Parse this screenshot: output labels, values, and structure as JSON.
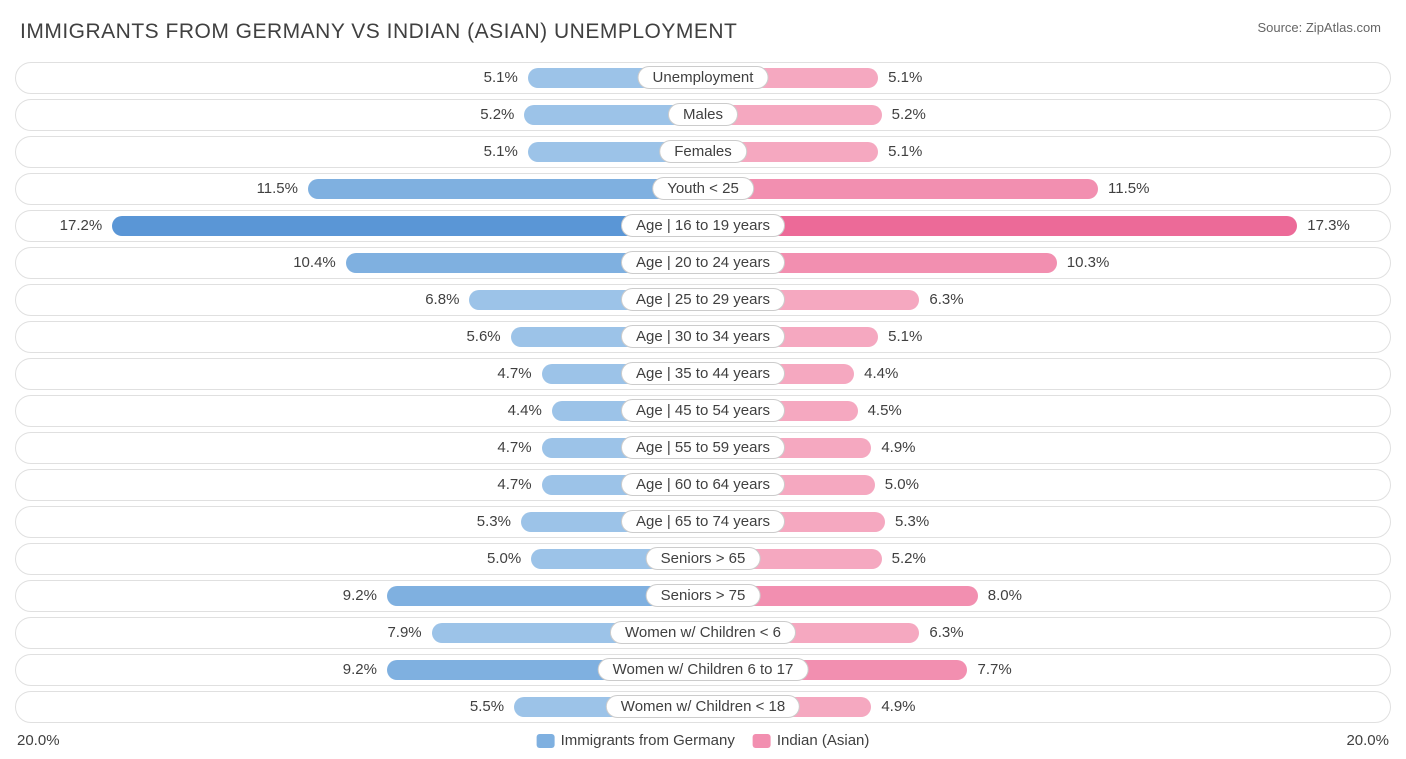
{
  "title": "IMMIGRANTS FROM GERMANY VS INDIAN (ASIAN) UNEMPLOYMENT",
  "source": "Source: ZipAtlas.com",
  "chart": {
    "type": "diverging-bar",
    "axis_max": 20.0,
    "axis_label": "20.0%",
    "background_color": "#ffffff",
    "row_border_color": "#e0e0e0",
    "text_color": "#404040",
    "label_fontsize": 15,
    "title_fontsize": 21,
    "left": {
      "name": "Immigrants from Germany",
      "color_light": "#9cc3e8",
      "color_mid": "#7fb0e0",
      "color_dark": "#5a96d6"
    },
    "right": {
      "name": "Indian (Asian)",
      "color_light": "#f5a8c0",
      "color_mid": "#f28fb0",
      "color_dark": "#ec6a98"
    },
    "rows": [
      {
        "label": "Unemployment",
        "l": 5.1,
        "r": 5.1,
        "shade": "light"
      },
      {
        "label": "Males",
        "l": 5.2,
        "r": 5.2,
        "shade": "light"
      },
      {
        "label": "Females",
        "l": 5.1,
        "r": 5.1,
        "shade": "light"
      },
      {
        "label": "Youth < 25",
        "l": 11.5,
        "r": 11.5,
        "shade": "mid"
      },
      {
        "label": "Age | 16 to 19 years",
        "l": 17.2,
        "r": 17.3,
        "shade": "dark"
      },
      {
        "label": "Age | 20 to 24 years",
        "l": 10.4,
        "r": 10.3,
        "shade": "mid"
      },
      {
        "label": "Age | 25 to 29 years",
        "l": 6.8,
        "r": 6.3,
        "shade": "light"
      },
      {
        "label": "Age | 30 to 34 years",
        "l": 5.6,
        "r": 5.1,
        "shade": "light"
      },
      {
        "label": "Age | 35 to 44 years",
        "l": 4.7,
        "r": 4.4,
        "shade": "light"
      },
      {
        "label": "Age | 45 to 54 years",
        "l": 4.4,
        "r": 4.5,
        "shade": "light"
      },
      {
        "label": "Age | 55 to 59 years",
        "l": 4.7,
        "r": 4.9,
        "shade": "light"
      },
      {
        "label": "Age | 60 to 64 years",
        "l": 4.7,
        "r": 5.0,
        "shade": "light"
      },
      {
        "label": "Age | 65 to 74 years",
        "l": 5.3,
        "r": 5.3,
        "shade": "light"
      },
      {
        "label": "Seniors > 65",
        "l": 5.0,
        "r": 5.2,
        "shade": "light"
      },
      {
        "label": "Seniors > 75",
        "l": 9.2,
        "r": 8.0,
        "shade": "mid"
      },
      {
        "label": "Women w/ Children < 6",
        "l": 7.9,
        "r": 6.3,
        "shade": "light"
      },
      {
        "label": "Women w/ Children 6 to 17",
        "l": 9.2,
        "r": 7.7,
        "shade": "mid"
      },
      {
        "label": "Women w/ Children < 18",
        "l": 5.5,
        "r": 4.9,
        "shade": "light"
      }
    ]
  }
}
